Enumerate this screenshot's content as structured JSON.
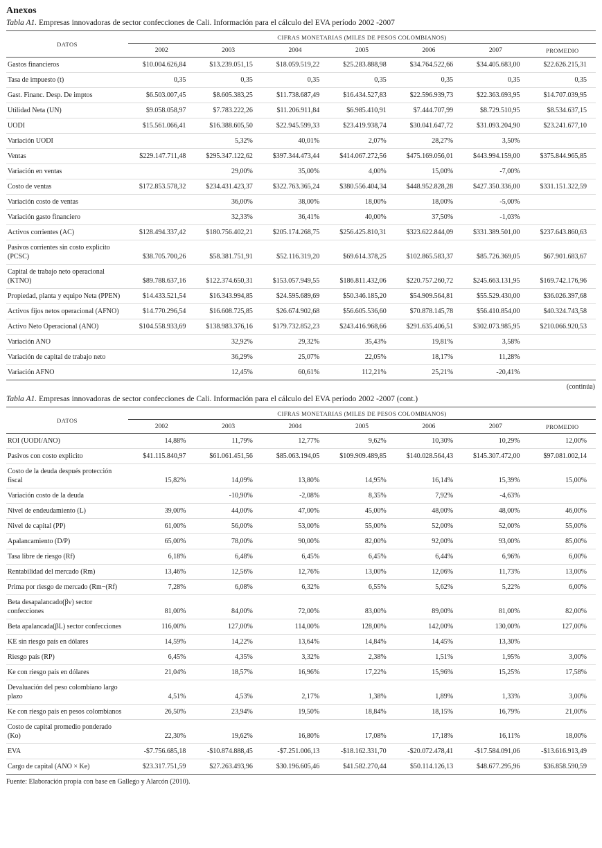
{
  "page": {
    "section_title": "Anexos",
    "continues_note": "(continúa)",
    "source_note": "Fuente: Elaboración propia con base en Gallego y Alarcón (2010)."
  },
  "tables": [
    {
      "caption_label": "Tabla A1.",
      "caption_text": "Empresas innovadoras de sector confecciones de Cali. Información para el cálculo del EVA período 2002 -2007",
      "datos_header": "DATOS",
      "group_header": "CIFRAS MONETARIAS (MILES DE PESOS COLOMBIANOS)",
      "columns": [
        "2002",
        "2003",
        "2004",
        "2005",
        "2006",
        "2007",
        "PROMEDIO"
      ],
      "rows": [
        {
          "label": "Gastos financieros",
          "values": [
            "$10.004.626,84",
            "$13.239.051,15",
            "$18.059.519,22",
            "$25.283.888,98",
            "$34.764.522,66",
            "$34.405.683,00",
            "$22.626.215,31"
          ]
        },
        {
          "label": "Tasa de impuesto (t)",
          "values": [
            "0,35",
            "0,35",
            "0,35",
            "0,35",
            "0,35",
            "0,35",
            "0,35"
          ]
        },
        {
          "label": "Gast. Financ. Desp. De imptos",
          "values": [
            "$6.503.007,45",
            "$8.605.383,25",
            "$11.738.687,49",
            "$16.434.527,83",
            "$22.596.939,73",
            "$22.363.693,95",
            "$14.707.039,95"
          ]
        },
        {
          "label": "Utilidad Neta (UN)",
          "values": [
            "$9.058.058,97",
            "$7.783.222,26",
            "$11.206.911,84",
            "$6.985.410,91",
            "$7.444.707,99",
            "$8.729.510,95",
            "$8.534.637,15"
          ]
        },
        {
          "label": "UODI",
          "values": [
            "$15.561.066,41",
            "$16.388.605,50",
            "$22.945.599,33",
            "$23.419.938,74",
            "$30.041.647,72",
            "$31.093.204,90",
            "$23.241.677,10"
          ]
        },
        {
          "label": "Variación UODI",
          "values": [
            "",
            "5,32%",
            "40,01%",
            "2,07%",
            "28,27%",
            "3,50%",
            ""
          ]
        },
        {
          "label": "Ventas",
          "values": [
            "$229.147.711,48",
            "$295.347.122,62",
            "$397.344.473,44",
            "$414.067.272,56",
            "$475.169.056,01",
            "$443.994.159,00",
            "$375.844.965,85"
          ]
        },
        {
          "label": "Variación en ventas",
          "values": [
            "",
            "29,00%",
            "35,00%",
            "4,00%",
            "15,00%",
            "-7,00%",
            ""
          ]
        },
        {
          "label": "Costo de ventas",
          "values": [
            "$172.853.578,32",
            "$234.431.423,37",
            "$322.763.365,24",
            "$380.556.404,34",
            "$448.952.828,28",
            "$427.350.336,00",
            "$331.151.322,59"
          ]
        },
        {
          "label": "Variación costo de ventas",
          "values": [
            "",
            "36,00%",
            "38,00%",
            "18,00%",
            "18,00%",
            "-5,00%",
            ""
          ]
        },
        {
          "label": "Variación gasto financiero",
          "values": [
            "",
            "32,33%",
            "36,41%",
            "40,00%",
            "37,50%",
            "-1,03%",
            ""
          ]
        },
        {
          "label": "Activos corrientes (AC)",
          "values": [
            "$128.494.337,42",
            "$180.756.402,21",
            "$205.174.268,75",
            "$256.425.810,31",
            "$323.622.844,09",
            "$331.389.501,00",
            "$237.643.860,63"
          ]
        },
        {
          "label": "Pasivos corrientes sin costo explicito (PCSC)",
          "values": [
            "$38.705.700,26",
            "$58.381.751,91",
            "$52.116.319,20",
            "$69.614.378,25",
            "$102.865.583,37",
            "$85.726.369,05",
            "$67.901.683,67"
          ]
        },
        {
          "label": "Capital de trabajo neto operacional (KTNO)",
          "values": [
            "$89.788.637,16",
            "$122.374.650,31",
            "$153.057.949,55",
            "$186.811.432,06",
            "$220.757.260,72",
            "$245.663.131,95",
            "$169.742.176,96"
          ]
        },
        {
          "label": "Propiedad, planta y equipo Neta (PPEN)",
          "values": [
            "$14.433.521,54",
            "$16.343.994,85",
            "$24.595.689,69",
            "$50.346.185,20",
            "$54.909.564,81",
            "$55.529.430,00",
            "$36.026.397,68"
          ]
        },
        {
          "label": "Activos fijos netos operacional (AFNO)",
          "values": [
            "$14.770.296,54",
            "$16.608.725,85",
            "$26.674.902,68",
            "$56.605.536,60",
            "$70.878.145,78",
            "$56.410.854,00",
            "$40.324.743,58"
          ]
        },
        {
          "label": "Activo Neto Operacional (ANO)",
          "values": [
            "$104.558.933,69",
            "$138.983.376,16",
            "$179.732.852,23",
            "$243.416.968,66",
            "$291.635.406,51",
            "$302.073.985,95",
            "$210.066.920,53"
          ]
        },
        {
          "label": "Variación ANO",
          "values": [
            "",
            "32,92%",
            "29,32%",
            "35,43%",
            "19,81%",
            "3,58%",
            ""
          ]
        },
        {
          "label": "Variación de capital de trabajo neto",
          "values": [
            "",
            "36,29%",
            "25,07%",
            "22,05%",
            "18,17%",
            "11,28%",
            ""
          ]
        },
        {
          "label": "Variación AFNO",
          "values": [
            "",
            "12,45%",
            "60,61%",
            "112,21%",
            "25,21%",
            "-20,41%",
            ""
          ]
        }
      ]
    },
    {
      "caption_label": "Tabla A1.",
      "caption_text": "Empresas innovadoras de sector confecciones de Cali. Información para el cálculo del EVA período 2002 -2007 (cont.)",
      "datos_header": "DATOS",
      "group_header": "CIFRAS MONETARIAS (MILES DE PESOS COLOMBIANOS)",
      "columns": [
        "2002",
        "2003",
        "2004",
        "2005",
        "2006",
        "2007",
        "PROMEDIO"
      ],
      "rows": [
        {
          "label": "ROI (UODI/ANO)",
          "values": [
            "14,88%",
            "11,79%",
            "12,77%",
            "9,62%",
            "10,30%",
            "10,29%",
            "12,00%"
          ]
        },
        {
          "label": "Pasivos con costo explicito",
          "values": [
            "$41.115.840,97",
            "$61.061.451,56",
            "$85.063.194,05",
            "$109.909.489,85",
            "$140.028.564,43",
            "$145.307.472,00",
            "$97.081.002,14"
          ]
        },
        {
          "label": "Costo de la deuda después protección fiscal",
          "values": [
            "15,82%",
            "14,09%",
            "13,80%",
            "14,95%",
            "16,14%",
            "15,39%",
            "15,00%"
          ]
        },
        {
          "label": "Variación costo de la deuda",
          "values": [
            "",
            "-10,90%",
            "-2,08%",
            "8,35%",
            "7,92%",
            "-4,63%",
            ""
          ]
        },
        {
          "label": "Nivel de endeudamiento (L)",
          "values": [
            "39,00%",
            "44,00%",
            "47,00%",
            "45,00%",
            "48,00%",
            "48,00%",
            "46,00%"
          ]
        },
        {
          "label": "Nivel de capital (PP)",
          "values": [
            "61,00%",
            "56,00%",
            "53,00%",
            "55,00%",
            "52,00%",
            "52,00%",
            "55,00%"
          ]
        },
        {
          "label": "Apalancamiento (D/P)",
          "values": [
            "65,00%",
            "78,00%",
            "90,00%",
            "82,00%",
            "92,00%",
            "93,00%",
            "85,00%"
          ]
        },
        {
          "label": "Tasa libre de riesgo (Rf)",
          "values": [
            "6,18%",
            "6,48%",
            "6,45%",
            "6,45%",
            "6,44%",
            "6,96%",
            "6,00%"
          ]
        },
        {
          "label": "Rentabilidad del mercado (Rm)",
          "values": [
            "13,46%",
            "12,56%",
            "12,76%",
            "13,00%",
            "12,06%",
            "11,73%",
            "13,00%"
          ]
        },
        {
          "label": "Prima por riesgo de mercado (Rm−(Rf)",
          "values": [
            "7,28%",
            "6,08%",
            "6,32%",
            "6,55%",
            "5,62%",
            "5,22%",
            "6,00%"
          ]
        },
        {
          "label": "Beta desapalancado(βv) sector confecciones",
          "values": [
            "81,00%",
            "84,00%",
            "72,00%",
            "83,00%",
            "89,00%",
            "81,00%",
            "82,00%"
          ]
        },
        {
          "label": "Beta apalancada(βL) sector confecciones",
          "values": [
            "116,00%",
            "127,00%",
            "114,00%",
            "128,00%",
            "142,00%",
            "130,00%",
            "127,00%"
          ]
        },
        {
          "label": "KE sin riesgo país en dólares",
          "values": [
            "14,59%",
            "14,22%",
            "13,64%",
            "14,84%",
            "14,45%",
            "13,30%",
            ""
          ]
        },
        {
          "label": "Riesgo país (RP)",
          "values": [
            "6,45%",
            "4,35%",
            "3,32%",
            "2,38%",
            "1,51%",
            "1,95%",
            "3,00%"
          ]
        },
        {
          "label": "Ke con riesgo país en dólares",
          "values": [
            "21,04%",
            "18,57%",
            "16,96%",
            "17,22%",
            "15,96%",
            "15,25%",
            "17,58%"
          ]
        },
        {
          "label": "Devaluación del peso colombiano largo plazo",
          "values": [
            "4,51%",
            "4,53%",
            "2,17%",
            "1,38%",
            "1,89%",
            "1,33%",
            "3,00%"
          ]
        },
        {
          "label": "Ke con riesgo país en pesos colombianos",
          "values": [
            "26,50%",
            "23,94%",
            "19,50%",
            "18,84%",
            "18,15%",
            "16,79%",
            "21,00%"
          ]
        },
        {
          "label": "Costo de capital promedio ponderado (Ko)",
          "values": [
            "22,30%",
            "19,62%",
            "16,80%",
            "17,08%",
            "17,18%",
            "16,11%",
            "18,00%"
          ]
        },
        {
          "label": "EVA",
          "values": [
            "-$7.756.685,18",
            "-$10.874.888,45",
            "-$7.251.006,13",
            "-$18.162.331,70",
            "-$20.072.478,41",
            "-$17.584.091,06",
            "-$13.616.913,49"
          ]
        },
        {
          "label": "Cargo de capital (ANO × Ke)",
          "values": [
            "$23.317.751,59",
            "$27.263.493,96",
            "$30.196.605,46",
            "$41.582.270,44",
            "$50.114.126,13",
            "$48.677.295,96",
            "$36.858.590,59"
          ]
        }
      ]
    }
  ]
}
